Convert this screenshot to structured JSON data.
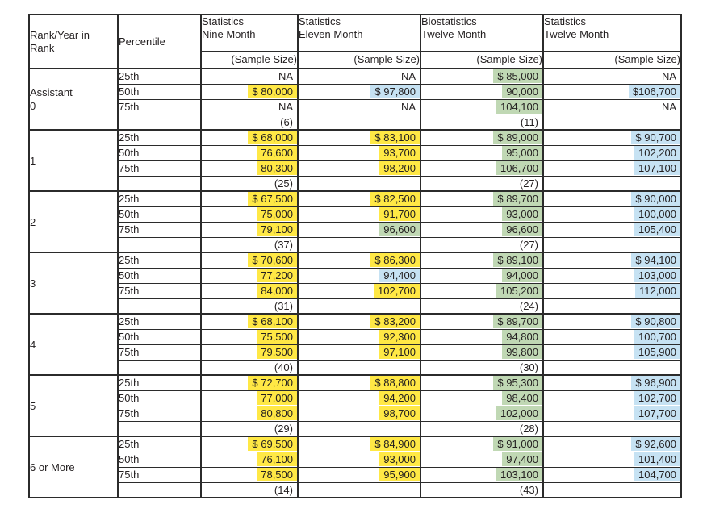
{
  "colors": {
    "highlight_yellow": "#ffe845",
    "highlight_green": "#c0d8b4",
    "highlight_blue": "#c6e2f3",
    "border": "#2b2b2b",
    "text": "#231f20",
    "background": "#ffffff"
  },
  "table": {
    "header": {
      "rank": "Rank/Year in\nRank",
      "percentile": "Percentile",
      "columns": [
        "Statistics\nNine Month",
        "Statistics\nEleven Month",
        "Biostatistics\nTwelve Month",
        "Statistics\nTwelve Month"
      ],
      "sample_size": "(Sample Size)"
    },
    "groups": [
      {
        "rank": "Assistant\n0",
        "rows": [
          {
            "percentile": "25th",
            "cells": [
              {
                "t": "NA",
                "hl": ""
              },
              {
                "t": "NA",
                "hl": ""
              },
              {
                "t": "$ 85,000",
                "hl": "green"
              },
              {
                "t": "NA",
                "hl": ""
              }
            ]
          },
          {
            "percentile": "50th",
            "cells": [
              {
                "t": "$ 80,000",
                "hl": "yellow"
              },
              {
                "t": "$ 97,800",
                "hl": "blue"
              },
              {
                "t": "90,000",
                "hl": "green"
              },
              {
                "t": "$106,700",
                "hl": "blue"
              }
            ]
          },
          {
            "percentile": "75th",
            "cells": [
              {
                "t": "NA",
                "hl": ""
              },
              {
                "t": "NA",
                "hl": ""
              },
              {
                "t": "104,100",
                "hl": "green"
              },
              {
                "t": "NA",
                "hl": ""
              }
            ]
          },
          {
            "percentile": "",
            "cells": [
              {
                "t": "(6)",
                "hl": ""
              },
              {
                "t": "",
                "hl": ""
              },
              {
                "t": "(11)",
                "hl": ""
              },
              {
                "t": "",
                "hl": ""
              }
            ]
          }
        ]
      },
      {
        "rank": "1",
        "rows": [
          {
            "percentile": "25th",
            "cells": [
              {
                "t": "$ 68,000",
                "hl": "yellow"
              },
              {
                "t": "$ 83,100",
                "hl": "yellow"
              },
              {
                "t": "$ 89,000",
                "hl": "green"
              },
              {
                "t": "$ 90,700",
                "hl": "blue"
              }
            ]
          },
          {
            "percentile": "50th",
            "cells": [
              {
                "t": "76,600",
                "hl": "yellow"
              },
              {
                "t": "93,700",
                "hl": "yellow"
              },
              {
                "t": "95,000",
                "hl": "green"
              },
              {
                "t": "102,200",
                "hl": "blue"
              }
            ]
          },
          {
            "percentile": "75th",
            "cells": [
              {
                "t": "80,300",
                "hl": "yellow"
              },
              {
                "t": "98,200",
                "hl": "yellow"
              },
              {
                "t": "106,700",
                "hl": "green"
              },
              {
                "t": "107,100",
                "hl": "blue"
              }
            ]
          },
          {
            "percentile": "",
            "cells": [
              {
                "t": "(25)",
                "hl": ""
              },
              {
                "t": "",
                "hl": ""
              },
              {
                "t": "(27)",
                "hl": ""
              },
              {
                "t": "",
                "hl": ""
              }
            ]
          }
        ]
      },
      {
        "rank": "2",
        "rows": [
          {
            "percentile": "25th",
            "cells": [
              {
                "t": "$ 67,500",
                "hl": "yellow"
              },
              {
                "t": "$ 82,500",
                "hl": "yellow"
              },
              {
                "t": "$ 89,700",
                "hl": "green"
              },
              {
                "t": "$ 90,000",
                "hl": "blue"
              }
            ]
          },
          {
            "percentile": "50th",
            "cells": [
              {
                "t": "75,000",
                "hl": "yellow"
              },
              {
                "t": "91,700",
                "hl": "yellow"
              },
              {
                "t": "93,000",
                "hl": "green"
              },
              {
                "t": "100,000",
                "hl": "blue"
              }
            ]
          },
          {
            "percentile": "75th",
            "cells": [
              {
                "t": "79,100",
                "hl": "yellow"
              },
              {
                "t": "96,600",
                "hl": "green"
              },
              {
                "t": "96,600",
                "hl": "green"
              },
              {
                "t": "105,400",
                "hl": "blue"
              }
            ]
          },
          {
            "percentile": "",
            "cells": [
              {
                "t": "(37)",
                "hl": ""
              },
              {
                "t": "",
                "hl": ""
              },
              {
                "t": "(27)",
                "hl": ""
              },
              {
                "t": "",
                "hl": ""
              }
            ]
          }
        ]
      },
      {
        "rank": "3",
        "rows": [
          {
            "percentile": "25th",
            "cells": [
              {
                "t": "$ 70,600",
                "hl": "yellow"
              },
              {
                "t": "$ 86,300",
                "hl": "yellow"
              },
              {
                "t": "$ 89,100",
                "hl": "green"
              },
              {
                "t": "$ 94,100",
                "hl": "blue"
              }
            ]
          },
          {
            "percentile": "50th",
            "cells": [
              {
                "t": "77,200",
                "hl": "yellow"
              },
              {
                "t": "94,400",
                "hl": "blue"
              },
              {
                "t": "94,000",
                "hl": "green"
              },
              {
                "t": "103,000",
                "hl": "blue"
              }
            ]
          },
          {
            "percentile": "75th",
            "cells": [
              {
                "t": "84,000",
                "hl": "yellow"
              },
              {
                "t": "102,700",
                "hl": "yellow"
              },
              {
                "t": "105,200",
                "hl": "green"
              },
              {
                "t": "112,000",
                "hl": "blue"
              }
            ]
          },
          {
            "percentile": "",
            "cells": [
              {
                "t": "(31)",
                "hl": ""
              },
              {
                "t": "",
                "hl": ""
              },
              {
                "t": "(24)",
                "hl": ""
              },
              {
                "t": "",
                "hl": ""
              }
            ]
          }
        ]
      },
      {
        "rank": "4",
        "rows": [
          {
            "percentile": "25th",
            "cells": [
              {
                "t": "$ 68,100",
                "hl": "yellow"
              },
              {
                "t": "$ 83,200",
                "hl": "yellow"
              },
              {
                "t": "$ 89,700",
                "hl": "green"
              },
              {
                "t": "$ 90,800",
                "hl": "blue"
              }
            ]
          },
          {
            "percentile": "50th",
            "cells": [
              {
                "t": "75,500",
                "hl": "yellow"
              },
              {
                "t": "92,300",
                "hl": "yellow"
              },
              {
                "t": "94,800",
                "hl": "green"
              },
              {
                "t": "100,700",
                "hl": "blue"
              }
            ]
          },
          {
            "percentile": "75th",
            "cells": [
              {
                "t": "79,500",
                "hl": "yellow"
              },
              {
                "t": "97,100",
                "hl": "yellow"
              },
              {
                "t": "99,800",
                "hl": "green"
              },
              {
                "t": "105,900",
                "hl": "blue"
              }
            ]
          },
          {
            "percentile": "",
            "cells": [
              {
                "t": "(40)",
                "hl": ""
              },
              {
                "t": "",
                "hl": ""
              },
              {
                "t": "(30)",
                "hl": ""
              },
              {
                "t": "",
                "hl": ""
              }
            ]
          }
        ]
      },
      {
        "rank": "5",
        "rows": [
          {
            "percentile": "25th",
            "cells": [
              {
                "t": "$ 72,700",
                "hl": "yellow"
              },
              {
                "t": "$ 88,800",
                "hl": "yellow"
              },
              {
                "t": "$ 95,300",
                "hl": "green"
              },
              {
                "t": "$ 96,900",
                "hl": "blue"
              }
            ]
          },
          {
            "percentile": "50th",
            "cells": [
              {
                "t": "77,000",
                "hl": "yellow"
              },
              {
                "t": "94,200",
                "hl": "yellow"
              },
              {
                "t": "98,400",
                "hl": "green"
              },
              {
                "t": "102,700",
                "hl": "blue"
              }
            ]
          },
          {
            "percentile": "75th",
            "cells": [
              {
                "t": "80,800",
                "hl": "yellow"
              },
              {
                "t": "98,700",
                "hl": "yellow"
              },
              {
                "t": "102,000",
                "hl": "green"
              },
              {
                "t": "107,700",
                "hl": "blue"
              }
            ]
          },
          {
            "percentile": "",
            "cells": [
              {
                "t": "(29)",
                "hl": ""
              },
              {
                "t": "",
                "hl": ""
              },
              {
                "t": "(28)",
                "hl": ""
              },
              {
                "t": "",
                "hl": ""
              }
            ]
          }
        ]
      },
      {
        "rank": "6 or More",
        "rows": [
          {
            "percentile": "25th",
            "cells": [
              {
                "t": "$ 69,500",
                "hl": "yellow"
              },
              {
                "t": "$ 84,900",
                "hl": "yellow"
              },
              {
                "t": "$ 91,000",
                "hl": "green"
              },
              {
                "t": "$ 92,600",
                "hl": "blue"
              }
            ]
          },
          {
            "percentile": "50th",
            "cells": [
              {
                "t": "76,100",
                "hl": "yellow"
              },
              {
                "t": "93,000",
                "hl": "yellow"
              },
              {
                "t": "97,400",
                "hl": "green"
              },
              {
                "t": "101,400",
                "hl": "blue"
              }
            ]
          },
          {
            "percentile": "75th",
            "cells": [
              {
                "t": "78,500",
                "hl": "yellow"
              },
              {
                "t": "95,900",
                "hl": "yellow"
              },
              {
                "t": "103,100",
                "hl": "green"
              },
              {
                "t": "104,700",
                "hl": "blue"
              }
            ]
          },
          {
            "percentile": "",
            "cells": [
              {
                "t": "(14)",
                "hl": ""
              },
              {
                "t": "",
                "hl": ""
              },
              {
                "t": "(43)",
                "hl": ""
              },
              {
                "t": "",
                "hl": ""
              }
            ]
          }
        ]
      }
    ]
  }
}
